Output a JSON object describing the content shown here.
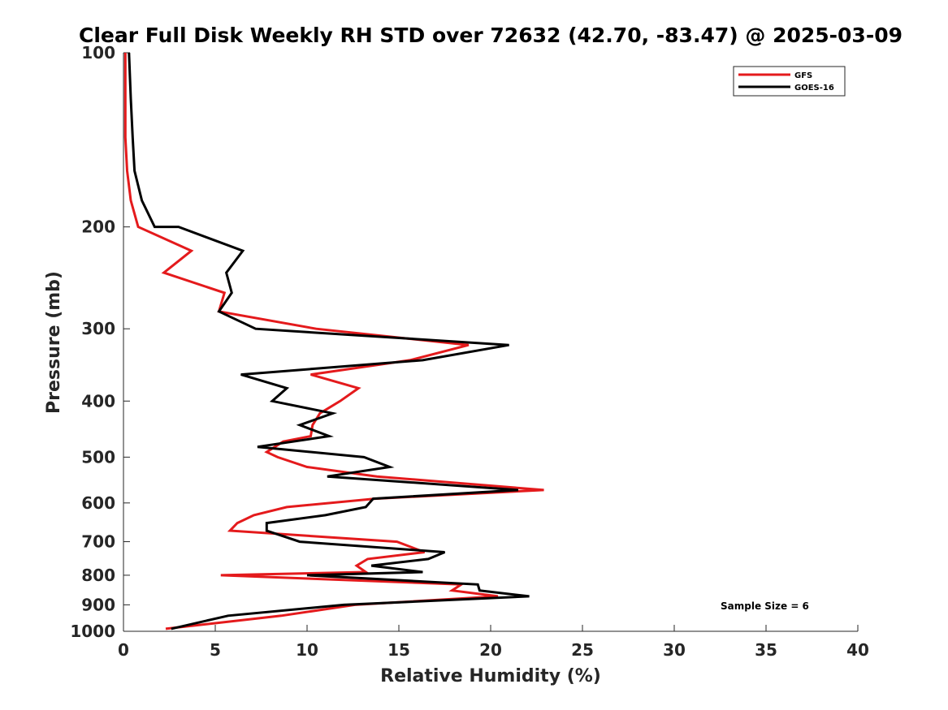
{
  "chart_data": {
    "type": "line",
    "title": "Clear Full Disk Weekly RH STD over 72632 (42.70, -83.47) @ 2025-03-09",
    "xlabel": "Relative Humidity (%)",
    "ylabel": "Pressure (mb)",
    "xlim": [
      0,
      40
    ],
    "ylim": [
      100,
      1000
    ],
    "yscale": "log",
    "y_reversed": true,
    "xticks": [
      0,
      5,
      10,
      15,
      20,
      25,
      30,
      35,
      40
    ],
    "xtick_labels": [
      "0",
      "5",
      "10",
      "15",
      "20",
      "25",
      "30",
      "35",
      "40"
    ],
    "yticks": [
      100,
      200,
      300,
      400,
      500,
      600,
      700,
      800,
      900,
      1000
    ],
    "ytick_labels": [
      "100",
      "200",
      "300",
      "400",
      "500",
      "600",
      "700",
      "800",
      "900",
      "1000"
    ],
    "grid": false,
    "legend_position": "top-right",
    "annotation": "Sample Size = 6",
    "series": [
      {
        "name": "GFS",
        "color": "#e41a1c",
        "x": [
          0.1,
          0.1,
          0.1,
          0.2,
          0.4,
          0.8,
          3.7,
          2.2,
          5.5,
          5.2,
          10.5,
          18.8,
          15.6,
          10.2,
          12.8,
          11.8,
          10.7,
          10.3,
          10.2,
          8.7,
          7.8,
          8.4,
          10.0,
          13.8,
          22.9,
          13.7,
          8.9,
          7.1,
          6.2,
          5.8,
          14.9,
          16.4,
          13.3,
          12.7,
          13.2,
          5.3,
          18.4,
          17.9,
          20.4,
          12.6,
          8.6,
          2.3
        ],
        "y": [
          100,
          120,
          140,
          160,
          180,
          200,
          220,
          240,
          260,
          280,
          300,
          320,
          340,
          360,
          380,
          400,
          420,
          440,
          460,
          470,
          490,
          500,
          520,
          540,
          570,
          590,
          610,
          630,
          650,
          670,
          700,
          730,
          750,
          770,
          790,
          800,
          830,
          850,
          870,
          900,
          940,
          990
        ]
      },
      {
        "name": "GOES-16",
        "color": "#000000",
        "x": [
          0.3,
          0.4,
          0.5,
          0.6,
          1.0,
          1.7,
          3.0,
          6.5,
          5.6,
          5.9,
          5.2,
          7.2,
          21.0,
          16.3,
          6.4,
          8.9,
          8.1,
          11.4,
          9.6,
          11.2,
          7.3,
          13.1,
          14.5,
          11.1,
          21.5,
          13.6,
          13.2,
          11.0,
          7.8,
          7.8,
          9.6,
          17.5,
          16.6,
          13.5,
          16.3,
          10.0,
          19.3,
          19.4,
          22.1,
          12.0,
          5.7,
          2.6
        ],
        "y": [
          100,
          120,
          140,
          160,
          180,
          200,
          200,
          220,
          240,
          260,
          280,
          300,
          320,
          340,
          360,
          380,
          400,
          420,
          440,
          460,
          480,
          500,
          520,
          540,
          570,
          590,
          610,
          630,
          650,
          670,
          700,
          730,
          750,
          770,
          790,
          800,
          830,
          850,
          870,
          900,
          940,
          990
        ]
      }
    ]
  }
}
